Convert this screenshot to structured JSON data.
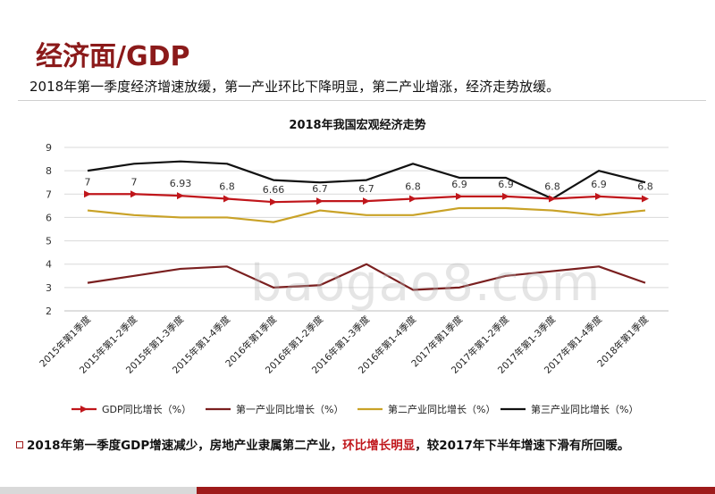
{
  "page": {
    "title": "经济面/GDP",
    "subtitle": "2018年第一季度经济增速放缓，第一产业环比下降明显，第二产业增涨，经济走势放缓。",
    "footnote_part1": "2018年第一季度GDP增速减少，房地产业隶属第二产业，",
    "footnote_emph": "环比增长明显",
    "footnote_part2": "，较2017年下半年增速下滑有所回暖。",
    "watermark": "baogao8.com"
  },
  "chart_data": {
    "type": "line",
    "title": "2018年我国宏观经济走势",
    "categories": [
      "2015年第1季度",
      "2015年第1-2季度",
      "2015年第1-3季度",
      "2015年第1-4季度",
      "2016年第1季度",
      "2016年第1-2季度",
      "2016年第1-3季度",
      "2016年第1-4季度",
      "2017年第1季度",
      "2017年第1-2季度",
      "2017年第1-3季度",
      "2017年第1-4季度",
      "2018年第1季度"
    ],
    "ylim": [
      2,
      9
    ],
    "yticks": [
      2,
      3,
      4,
      5,
      6,
      7,
      8,
      9
    ],
    "legend_position": "bottom",
    "series": [
      {
        "name": "GDP同比增长（%）",
        "color": "#c0161b",
        "marker": "arrow",
        "values": [
          7,
          7,
          6.93,
          6.8,
          6.66,
          6.7,
          6.7,
          6.8,
          6.9,
          6.9,
          6.8,
          6.9,
          6.8
        ],
        "labels": [
          "7",
          "7",
          "6.93",
          "6.8",
          "6.66",
          "6.7",
          "6.7",
          "6.8",
          "6.9",
          "6.9",
          "6.8",
          "6.9",
          "6.8"
        ]
      },
      {
        "name": "第一产业同比增长（%）",
        "color": "#7a1f1f",
        "marker": "none",
        "values": [
          3.2,
          3.5,
          3.8,
          3.9,
          3.0,
          3.1,
          4.0,
          2.9,
          3.0,
          3.5,
          3.7,
          3.9,
          3.2
        ]
      },
      {
        "name": "第二产业同比增长（%）",
        "color": "#c9a227",
        "marker": "none",
        "values": [
          6.3,
          6.1,
          6.0,
          6.0,
          5.8,
          6.3,
          6.1,
          6.1,
          6.4,
          6.4,
          6.3,
          6.1,
          6.3
        ]
      },
      {
        "name": "第三产业同比增长（%）",
        "color": "#111111",
        "marker": "none",
        "values": [
          8.0,
          8.3,
          8.4,
          8.3,
          7.6,
          7.5,
          7.6,
          8.3,
          7.7,
          7.7,
          6.8,
          8.0,
          7.5
        ]
      }
    ]
  }
}
